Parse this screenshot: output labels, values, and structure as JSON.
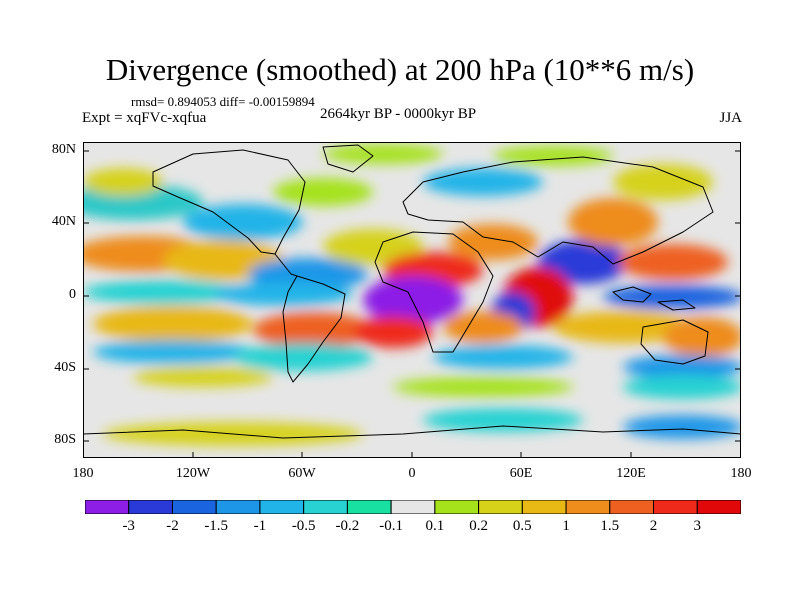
{
  "header": {
    "title": "Divergence (smoothed) at 200 hPa (10**6 m/s)",
    "stats": "rmsd= 0.894053 diff= -0.00159894",
    "experiment": "Expt = xqFVc-xqfua",
    "period": "2664kyr BP - 0000kyr BP",
    "season": "JJA"
  },
  "axes": {
    "y_ticks": [
      "80N",
      "40N",
      "0",
      "40S",
      "80S"
    ],
    "x_ticks": [
      "180",
      "120W",
      "60W",
      "0",
      "60E",
      "120E",
      "180"
    ]
  },
  "colorbar": {
    "labels": [
      "-3",
      "-2",
      "-1.5",
      "-1",
      "-0.5",
      "-0.2",
      "-0.1",
      "0.1",
      "0.2",
      "0.5",
      "1",
      "1.5",
      "2",
      "3"
    ],
    "colors": [
      "#8c1ee6",
      "#2a3ad8",
      "#1a64e0",
      "#1e96e8",
      "#20b4e8",
      "#28d2d2",
      "#18e0a0",
      "#e6e6e6",
      "#a6e21c",
      "#d6d21a",
      "#e8b814",
      "#ee8c1c",
      "#ee6020",
      "#ee2a1a",
      "#e00808"
    ]
  },
  "colors": {
    "neutral": "#e6e6e6",
    "coastline": "#000000"
  }
}
